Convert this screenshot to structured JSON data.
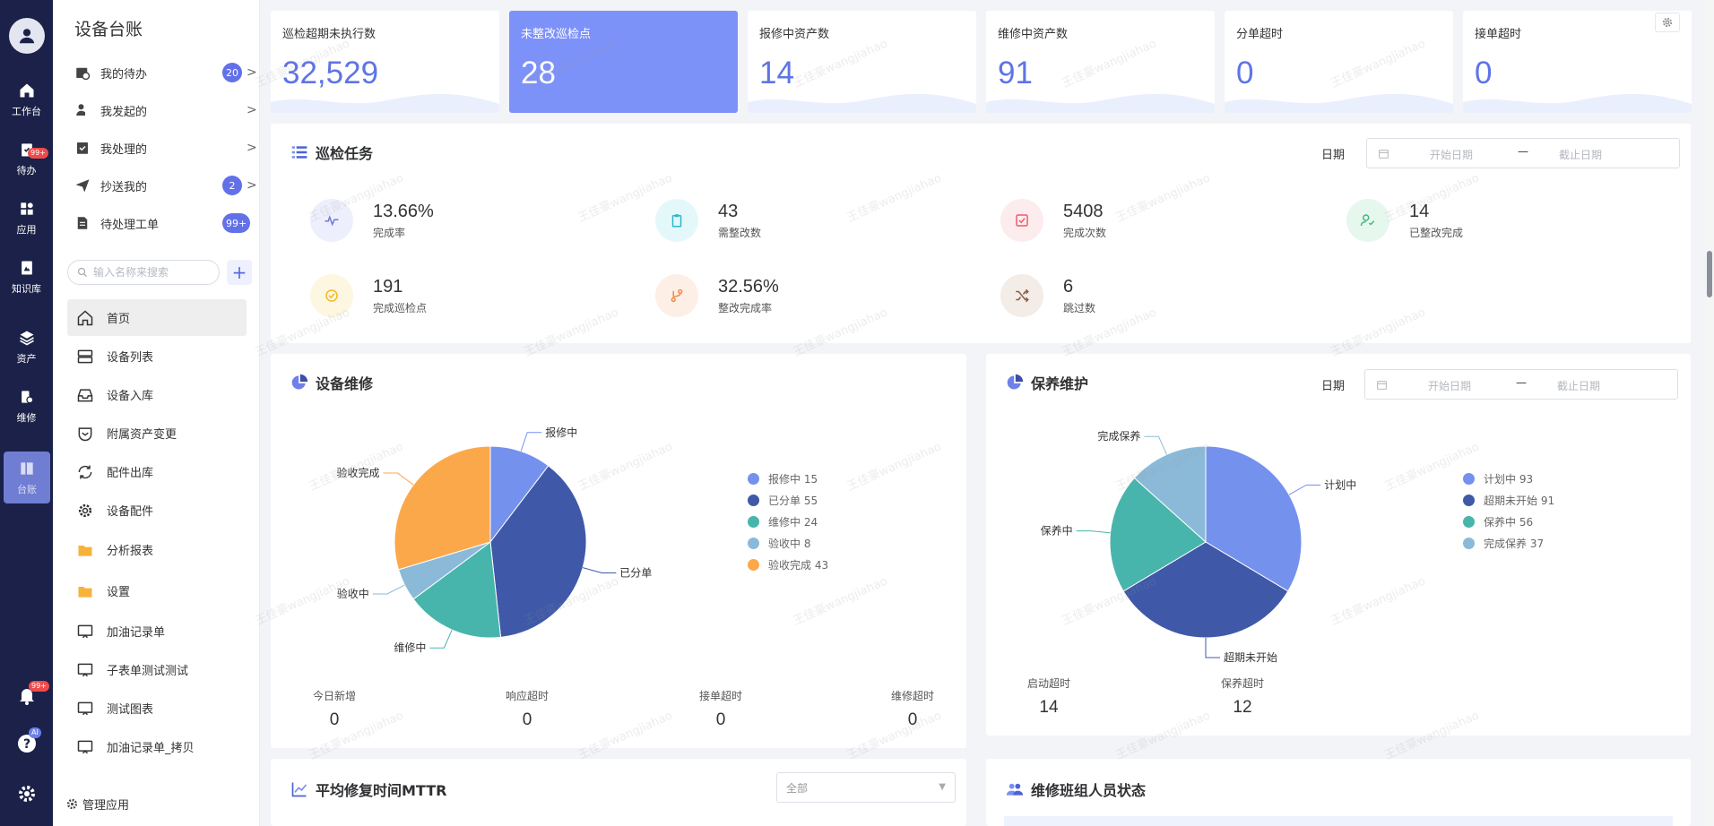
{
  "rail": {
    "items": [
      {
        "label": "工作台",
        "icon": "home-icon"
      },
      {
        "label": "待办",
        "icon": "todo-icon",
        "badge": "99+"
      },
      {
        "label": "应用",
        "icon": "apps-icon"
      },
      {
        "label": "知识库",
        "icon": "book-icon"
      },
      {
        "label": "资产",
        "icon": "layers-icon"
      },
      {
        "label": "维修",
        "icon": "wrench-icon"
      },
      {
        "label": "台账",
        "icon": "ledger-icon"
      }
    ],
    "bell_badge": "99+",
    "ai_badge": "AI"
  },
  "menu": {
    "title": "设备台账",
    "todos": [
      {
        "label": "我的待办",
        "count": "20"
      },
      {
        "label": "我发起的",
        "count": ""
      },
      {
        "label": "我处理的",
        "count": ""
      },
      {
        "label": "抄送我的",
        "count": "2"
      },
      {
        "label": "待处理工单",
        "count": "99+"
      }
    ],
    "search_placeholder": "输入名称来搜索",
    "nav": [
      "首页",
      "设备列表",
      "设备入库",
      "附属资产变更",
      "配件出库",
      "设备配件",
      "分析报表",
      "设置",
      "加油记录单",
      "子表单测试测试",
      "测试图表",
      "加油记录单_拷贝"
    ],
    "footer": "管理应用"
  },
  "stats": [
    {
      "label": "巡检超期未执行数",
      "value": "32,529"
    },
    {
      "label": "未整改巡检点",
      "value": "28"
    },
    {
      "label": "报修中资产数",
      "value": "14"
    },
    {
      "label": "维修中资产数",
      "value": "91"
    },
    {
      "label": "分单超时",
      "value": "0"
    },
    {
      "label": "接单超时",
      "value": "0"
    }
  ],
  "inspection": {
    "title": "巡检任务",
    "date_label": "日期",
    "date_start": "开始日期",
    "date_sep": "—",
    "date_end": "截止日期",
    "kpis": [
      {
        "value": "13.66%",
        "label": "完成率"
      },
      {
        "value": "43",
        "label": "需整改数"
      },
      {
        "value": "5408",
        "label": "完成次数"
      },
      {
        "value": "14",
        "label": "已整改完成"
      },
      {
        "value": "191",
        "label": "完成巡检点"
      },
      {
        "value": "32.56%",
        "label": "整改完成率"
      },
      {
        "value": "6",
        "label": "跳过数"
      }
    ]
  },
  "repair": {
    "title": "设备维修",
    "legend": [
      "报修中 15",
      "已分单 55",
      "维修中 24",
      "验收中 8",
      "验收完成 43"
    ],
    "footer": [
      {
        "label": "今日新增",
        "value": "0"
      },
      {
        "label": "响应超时",
        "value": "0"
      },
      {
        "label": "接单超时",
        "value": "0"
      },
      {
        "label": "维修超时",
        "value": "0"
      }
    ]
  },
  "maintenance": {
    "title": "保养维护",
    "date_label": "日期",
    "date_start": "开始日期",
    "date_sep": "—",
    "date_end": "截止日期",
    "legend": [
      "计划中 93",
      "超期未开始 91",
      "保养中 56",
      "完成保养 37"
    ],
    "footer": [
      {
        "label": "启动超时",
        "value": "14"
      },
      {
        "label": "保养超时",
        "value": "12"
      }
    ]
  },
  "mttr": {
    "title": "平均修复时间MTTR",
    "select_value": "全部"
  },
  "team": {
    "title": "维修班组人员状态"
  },
  "watermark": "王佳豪wangjiahao",
  "chart_data": [
    {
      "type": "pie",
      "title": "设备维修",
      "categories": [
        "报修中",
        "已分单",
        "维修中",
        "验收中",
        "验收完成"
      ],
      "values": [
        15,
        55,
        24,
        8,
        43
      ],
      "colors": [
        "#7591ee",
        "#3f59a8",
        "#48b5ac",
        "#8bbad8",
        "#fba84b"
      ],
      "legend": "right"
    },
    {
      "type": "pie",
      "title": "保养维护",
      "categories": [
        "计划中",
        "超期未开始",
        "保养中",
        "完成保养"
      ],
      "values": [
        93,
        91,
        56,
        37
      ],
      "colors": [
        "#7591ee",
        "#3f59a8",
        "#48b5ac",
        "#8bbad8"
      ],
      "legend": "right"
    }
  ]
}
